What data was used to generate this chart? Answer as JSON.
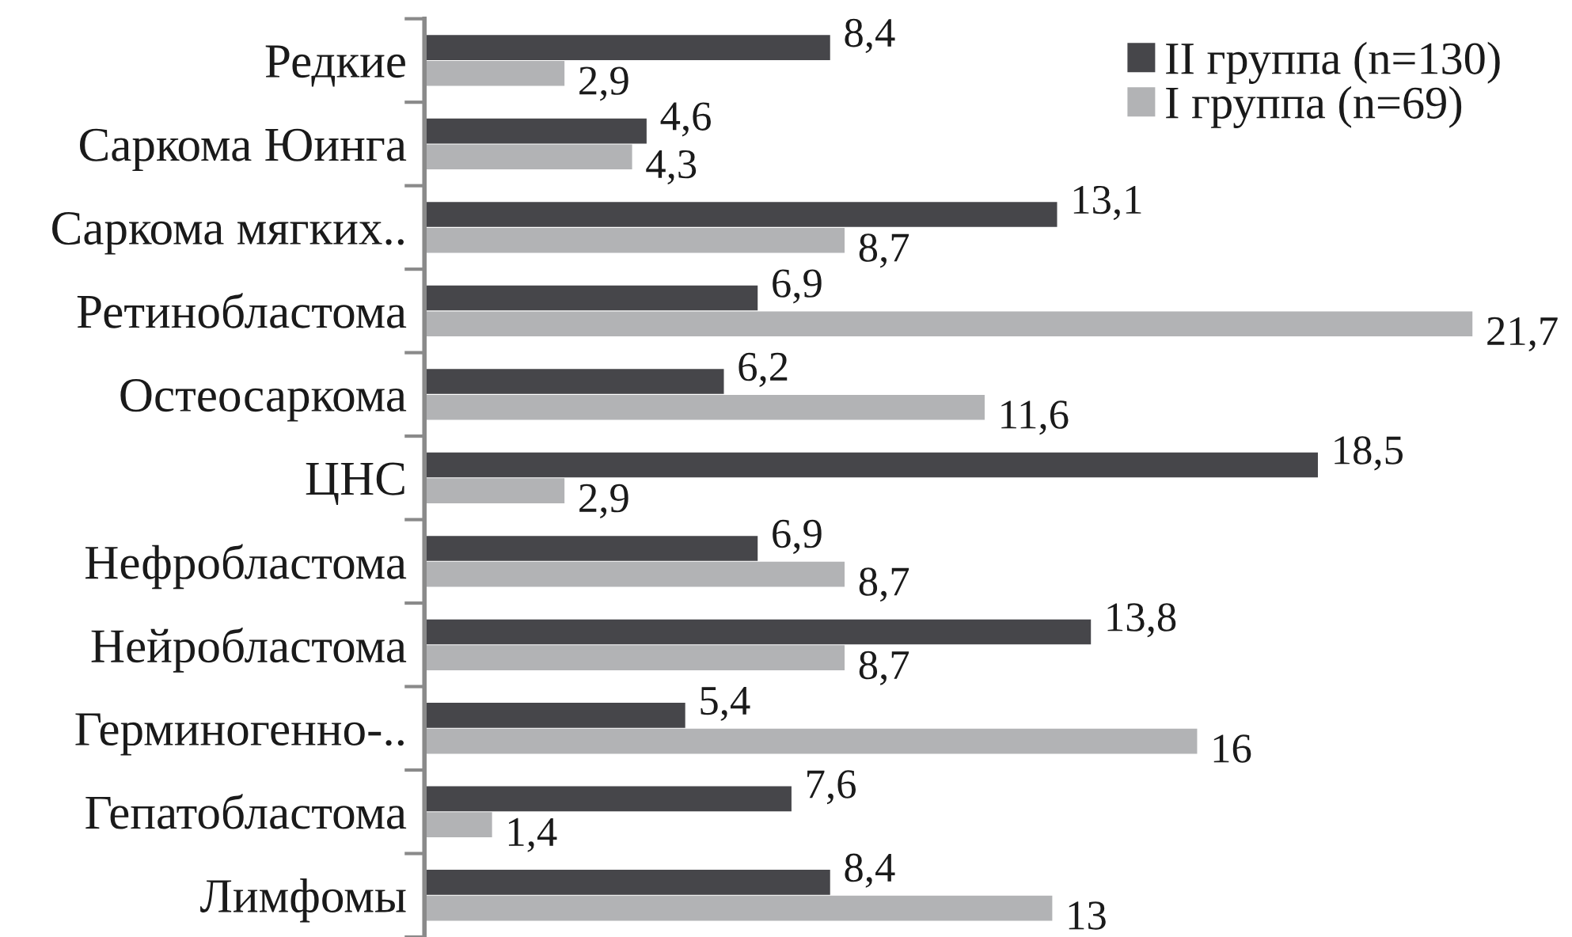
{
  "chart_data": {
    "type": "bar",
    "orientation": "horizontal",
    "tick_labels": "y",
    "legend": "top right",
    "categories": [
      "Редкие",
      "Саркома Юинга",
      "Саркома мягких..",
      "Ретинобластома",
      "Остеосаркома",
      "ЦНС",
      "Нефробластома",
      "Нейробластома",
      "Герминогенно-..",
      "Гепатобластома",
      "Лимфомы"
    ],
    "series": [
      {
        "name": "II группа (n=130)",
        "color": "#46464a",
        "values": [
          8.4,
          4.6,
          13.1,
          6.9,
          6.2,
          18.5,
          6.9,
          13.8,
          5.4,
          7.6,
          8.4
        ],
        "value_labels": [
          "8,4",
          "4,6",
          "13,1",
          "6,9",
          "6,2",
          "18,5",
          "6,9",
          "13,8",
          "5,4",
          "7,6",
          "8,4"
        ]
      },
      {
        "name": "I группа (n=69)",
        "color": "#b2b3b5",
        "values": [
          2.9,
          4.3,
          8.7,
          21.7,
          11.6,
          2.9,
          8.7,
          8.7,
          16,
          1.4,
          13
        ],
        "value_labels": [
          "2,9",
          "4,3",
          "8,7",
          "21,7",
          "11,6",
          "2,9",
          "8,7",
          "8,7",
          "16",
          "1,4",
          "13"
        ]
      }
    ]
  }
}
